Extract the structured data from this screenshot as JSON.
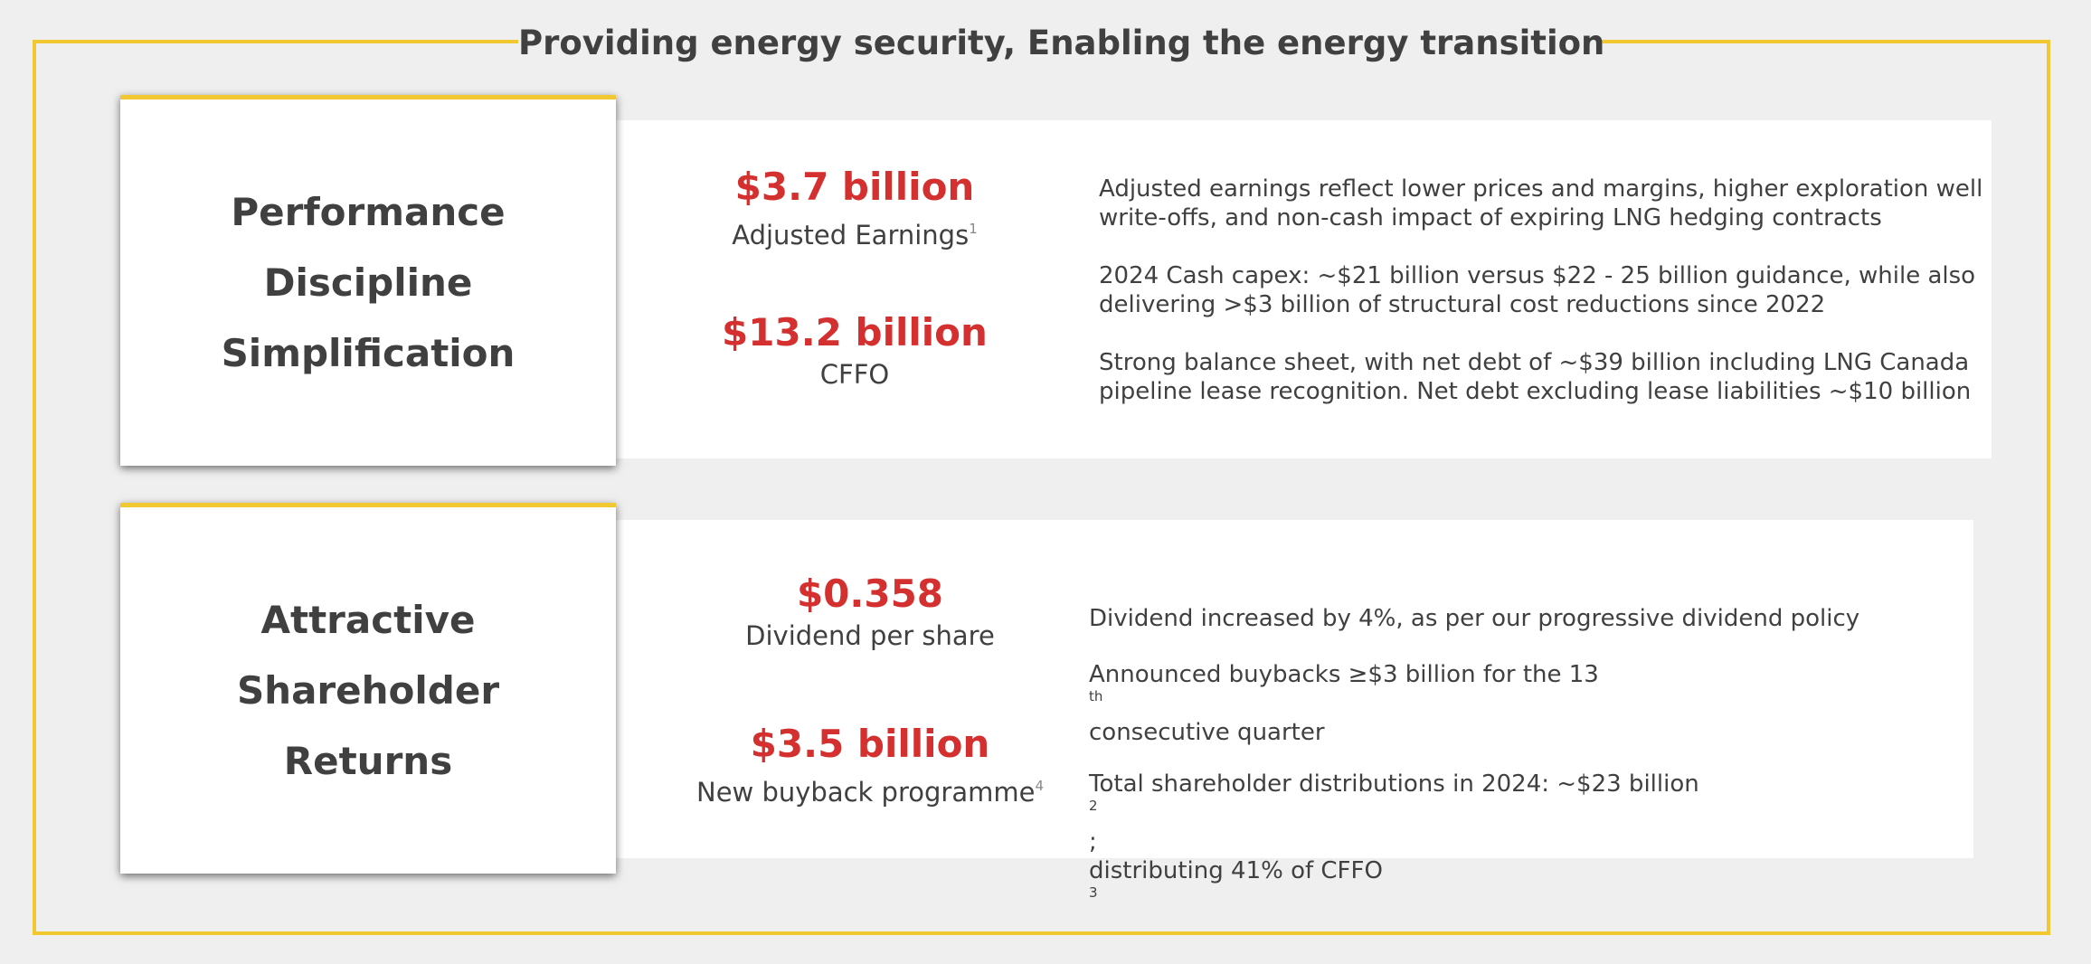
{
  "title": "Providing energy security, Enabling the energy transition",
  "colors": {
    "accent_yellow": "#f2c832",
    "value_red": "#d3302f",
    "text_grey": "#404040",
    "background": "#efefef",
    "panel": "#ffffff"
  },
  "section1": {
    "card_lines": [
      "Performance",
      "Discipline",
      "Simplification"
    ],
    "metrics": [
      {
        "value": "$3.7 billion",
        "label": "Adjusted Earnings",
        "sup": "1"
      },
      {
        "value": "$13.2 billion",
        "label": "CFFO",
        "sup": ""
      }
    ],
    "points": [
      {
        "line1": "Adjusted earnings reflect lower prices and margins, higher exploration well",
        "line2": "write-offs, and non-cash impact of expiring LNG hedging contracts"
      },
      {
        "line1": "2024 Cash capex: ~$21 billion versus $22 - 25 billion guidance, while also",
        "line2": "delivering >$3 billion of structural cost reductions since 2022"
      },
      {
        "line1": "Strong balance sheet, with net debt of ~$39 billion including LNG Canada",
        "line2": "pipeline lease recognition. Net debt excluding lease liabilities ~$10 billion"
      }
    ]
  },
  "section2": {
    "card_lines": [
      "Attractive",
      "Shareholder",
      "Returns"
    ],
    "metrics": [
      {
        "value": "$0.358",
        "label": "Dividend per share",
        "sup": ""
      },
      {
        "value": "$3.5 billion",
        "label": "New buyback programme",
        "sup": "4"
      }
    ],
    "points": {
      "p1": "Dividend increased by 4%, as per our progressive dividend policy",
      "p2_before": "Announced buybacks ≥$3 billion for the 13",
      "p2_sup": "th",
      "p2_after": " consecutive quarter",
      "p3_line1_before": "Total shareholder distributions in 2024: ~$23 billion",
      "p3_line1_sup": "2",
      "p3_line1_after": ";",
      "p3_line2_before": "distributing 41% of CFFO",
      "p3_line2_sup": "3"
    }
  }
}
